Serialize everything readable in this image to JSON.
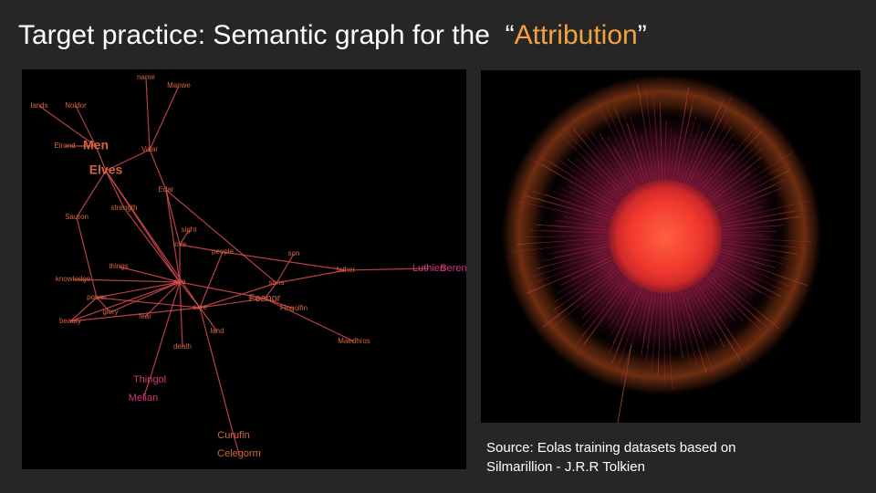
{
  "title": {
    "prefix": "Target practice: Semantic graph for the",
    "open_quote": "“",
    "highlight": "Attribution",
    "close_quote": "”"
  },
  "colors": {
    "background": "#262626",
    "accent": "#f2a240",
    "edge": "#d84a52",
    "node_orange": "#d4663c",
    "node_magenta": "#d2347c"
  },
  "graph": {
    "nodes": [
      {
        "id": "name",
        "label": "name",
        "size": "small",
        "color": "orange"
      },
      {
        "id": "manwe",
        "label": "Manwe",
        "size": "small",
        "color": "orange"
      },
      {
        "id": "lands",
        "label": "lands",
        "size": "small",
        "color": "orange"
      },
      {
        "id": "noldor",
        "label": "Noldor",
        "size": "small",
        "color": "orange"
      },
      {
        "id": "elrond",
        "label": "Elrond",
        "size": "small",
        "color": "orange"
      },
      {
        "id": "men",
        "label": "Men",
        "size": "large",
        "color": "orange"
      },
      {
        "id": "valar",
        "label": "Valar",
        "size": "small",
        "color": "orange"
      },
      {
        "id": "elves",
        "label": "Elves",
        "size": "large",
        "color": "orange"
      },
      {
        "id": "edar",
        "label": "Edar",
        "size": "small",
        "color": "orange"
      },
      {
        "id": "strength",
        "label": "strength",
        "size": "small",
        "color": "orange"
      },
      {
        "id": "sauron",
        "label": "Sauron",
        "size": "small",
        "color": "orange"
      },
      {
        "id": "sight",
        "label": "sight",
        "size": "small",
        "color": "orange"
      },
      {
        "id": "love",
        "label": "love",
        "size": "small",
        "color": "orange"
      },
      {
        "id": "people",
        "label": "people",
        "size": "small",
        "color": "orange"
      },
      {
        "id": "son",
        "label": "son",
        "size": "small",
        "color": "orange"
      },
      {
        "id": "things",
        "label": "things",
        "size": "small",
        "color": "orange"
      },
      {
        "id": "father",
        "label": "father",
        "size": "small",
        "color": "orange"
      },
      {
        "id": "luthien",
        "label": "Luthien",
        "size": "medium",
        "color": "magenta"
      },
      {
        "id": "beren",
        "label": "Beren",
        "size": "medium",
        "color": "magenta"
      },
      {
        "id": "knowledge",
        "label": "knowledge",
        "size": "small",
        "color": "orange"
      },
      {
        "id": "eye",
        "label": "eye",
        "size": "small",
        "color": "orange"
      },
      {
        "id": "sons",
        "label": "sons",
        "size": "small",
        "color": "orange"
      },
      {
        "id": "power",
        "label": "power",
        "size": "small",
        "color": "orange"
      },
      {
        "id": "feanor",
        "label": "Feanor",
        "size": "medium",
        "color": "orange"
      },
      {
        "id": "care",
        "label": "care",
        "size": "small",
        "color": "orange"
      },
      {
        "id": "fingolfin",
        "label": "Fingolfin",
        "size": "small",
        "color": "orange"
      },
      {
        "id": "glory",
        "label": "glory",
        "size": "small",
        "color": "orange"
      },
      {
        "id": "fear",
        "label": "fear",
        "size": "small",
        "color": "orange"
      },
      {
        "id": "beauty",
        "label": "beauty",
        "size": "small",
        "color": "orange"
      },
      {
        "id": "land",
        "label": "land",
        "size": "small",
        "color": "orange"
      },
      {
        "id": "maedhros",
        "label": "Maedhros",
        "size": "small",
        "color": "orange"
      },
      {
        "id": "death",
        "label": "death",
        "size": "small",
        "color": "orange"
      },
      {
        "id": "thingol",
        "label": "Thingol",
        "size": "medium",
        "color": "magenta"
      },
      {
        "id": "melian",
        "label": "Melian",
        "size": "medium",
        "color": "magenta"
      },
      {
        "id": "curufin",
        "label": "Curufin",
        "size": "medium",
        "color": "orange"
      },
      {
        "id": "celegorm",
        "label": "Celegorm",
        "size": "medium",
        "color": "orange"
      }
    ],
    "edges": [
      [
        "name",
        "valar"
      ],
      [
        "manwe",
        "valar"
      ],
      [
        "valar",
        "edar"
      ],
      [
        "valar",
        "elves"
      ],
      [
        "lands",
        "men"
      ],
      [
        "noldor",
        "men"
      ],
      [
        "elrond",
        "men"
      ],
      [
        "men",
        "elves"
      ],
      [
        "elves",
        "sauron"
      ],
      [
        "elves",
        "strength"
      ],
      [
        "elves",
        "eye"
      ],
      [
        "elves",
        "care"
      ],
      [
        "sauron",
        "power"
      ],
      [
        "strength",
        "eye"
      ],
      [
        "edar",
        "love"
      ],
      [
        "edar",
        "eye"
      ],
      [
        "edar",
        "sons"
      ],
      [
        "sight",
        "love"
      ],
      [
        "love",
        "eye"
      ],
      [
        "love",
        "people"
      ],
      [
        "people",
        "care"
      ],
      [
        "people",
        "father"
      ],
      [
        "son",
        "sons"
      ],
      [
        "sons",
        "father"
      ],
      [
        "father",
        "luthien"
      ],
      [
        "sons",
        "feanor"
      ],
      [
        "sons",
        "care"
      ],
      [
        "feanor",
        "eye"
      ],
      [
        "feanor",
        "fingolfin"
      ],
      [
        "feanor",
        "maedhros"
      ],
      [
        "feanor",
        "care"
      ],
      [
        "things",
        "eye"
      ],
      [
        "knowledge",
        "eye"
      ],
      [
        "power",
        "eye"
      ],
      [
        "power",
        "glory"
      ],
      [
        "power",
        "beauty"
      ],
      [
        "power",
        "care"
      ],
      [
        "glory",
        "eye"
      ],
      [
        "fear",
        "eye"
      ],
      [
        "beauty",
        "eye"
      ],
      [
        "eye",
        "care"
      ],
      [
        "eye",
        "death"
      ],
      [
        "eye",
        "thingol"
      ],
      [
        "care",
        "land"
      ],
      [
        "care",
        "curufin"
      ],
      [
        "care",
        "beauty"
      ],
      [
        "thingol",
        "melian"
      ],
      [
        "curufin",
        "celegorm"
      ]
    ]
  },
  "caption": {
    "line1": "Source: Eolas training datasets based on",
    "line2": "Silmarillion - J.R.R Tolkien"
  }
}
